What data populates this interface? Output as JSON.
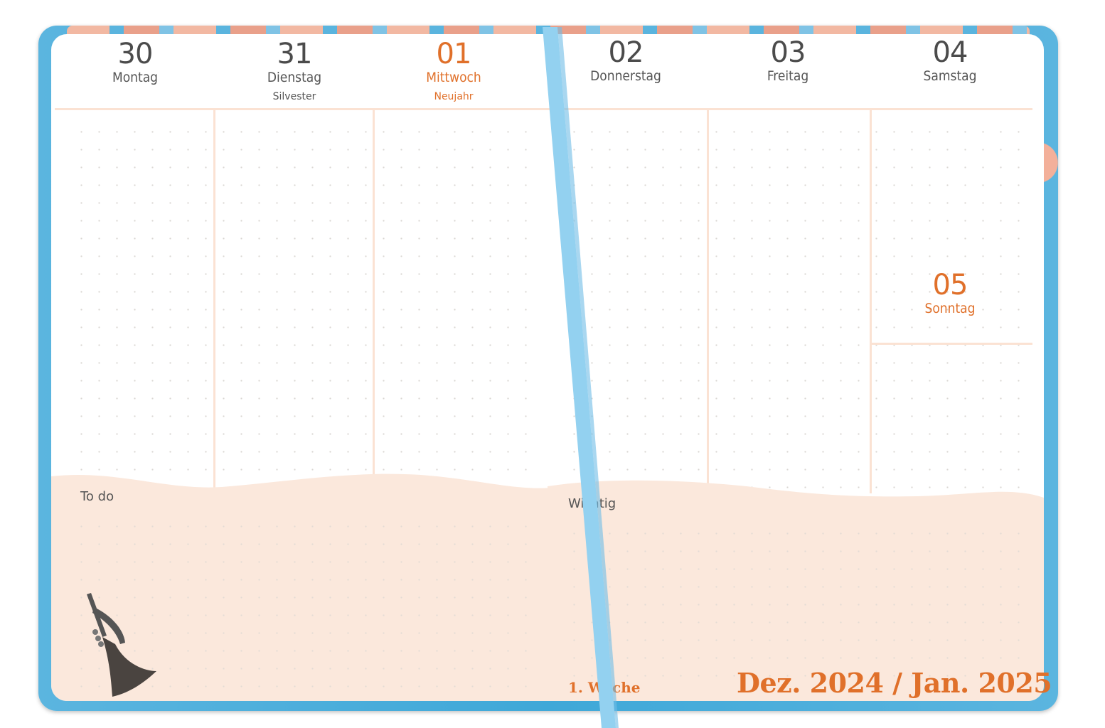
{
  "left_page": {
    "days": [
      {
        "number": "30",
        "name": "Montag",
        "holiday": ""
      },
      {
        "number": "31",
        "name": "Dienstag",
        "holiday": "Silvester"
      },
      {
        "number": "01",
        "name": "Mittwoch",
        "holiday": "Neujahr"
      }
    ],
    "section_label": "To do"
  },
  "right_page": {
    "days": [
      {
        "number": "02",
        "name": "Donnerstag",
        "holiday": ""
      },
      {
        "number": "03",
        "name": "Freitag",
        "holiday": ""
      },
      {
        "number": "04",
        "name": "Samstag",
        "holiday": ""
      },
      {
        "number": "05",
        "name": "Sonntag",
        "holiday": ""
      }
    ],
    "section_label": "Wichtig",
    "week_label": "1. Woche",
    "month_title": "Dez. 2024 / Jan. 2025"
  },
  "colors": {
    "accent": "#e0702a",
    "ribbon": "#93d1f0",
    "cover": "#45aadb",
    "note_area": "#fbe8dc"
  },
  "icons": {
    "trumpet": "trumpet-icon",
    "bookmark": "ribbon-bookmark"
  }
}
